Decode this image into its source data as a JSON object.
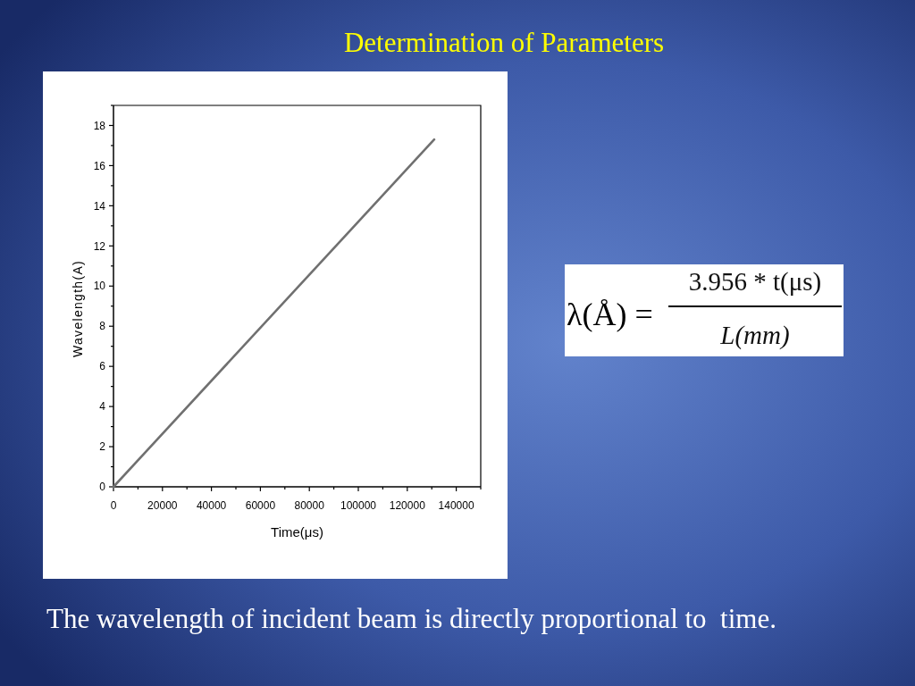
{
  "chart_data": {
    "type": "line",
    "title": "Determination of Parameters",
    "xlabel": "Time(μs)",
    "ylabel": "Wavelength(A)",
    "annotations": [
      "λ(Å) =",
      "3.956 * t(μs)",
      "L(mm)",
      "The wavelength of incident beam is directly proportional to  time."
    ],
    "x": [
      0,
      131000
    ],
    "series": [
      {
        "color": "#707070",
        "values": [
          0,
          17.3
        ]
      }
    ],
    "xlim": [
      0,
      150000
    ],
    "ylim": [
      0,
      19
    ],
    "xticks": [
      0,
      {
        "value": 10000,
        "label": null
      },
      20000,
      {
        "value": 30000,
        "label": null
      },
      40000,
      {
        "value": 50000,
        "label": null
      },
      60000,
      {
        "value": 70000,
        "label": null
      },
      80000,
      {
        "value": 90000,
        "label": null
      },
      100000,
      {
        "value": 110000,
        "label": null
      },
      120000,
      {
        "value": 130000,
        "label": null
      },
      140000,
      {
        "value": 150000,
        "label": null
      }
    ],
    "yticks": [
      0,
      {
        "value": 1,
        "label": null
      },
      2,
      {
        "value": 3,
        "label": null
      },
      4,
      {
        "value": 5,
        "label": null
      },
      6,
      {
        "value": 7,
        "label": null
      },
      8,
      {
        "value": 9,
        "label": null
      },
      10,
      {
        "value": 11,
        "label": null
      },
      12,
      {
        "value": 13,
        "label": null
      },
      14,
      {
        "value": 15,
        "label": null
      },
      16,
      {
        "value": 17,
        "label": null
      },
      18,
      {
        "value": 19,
        "label": null
      }
    ]
  }
}
